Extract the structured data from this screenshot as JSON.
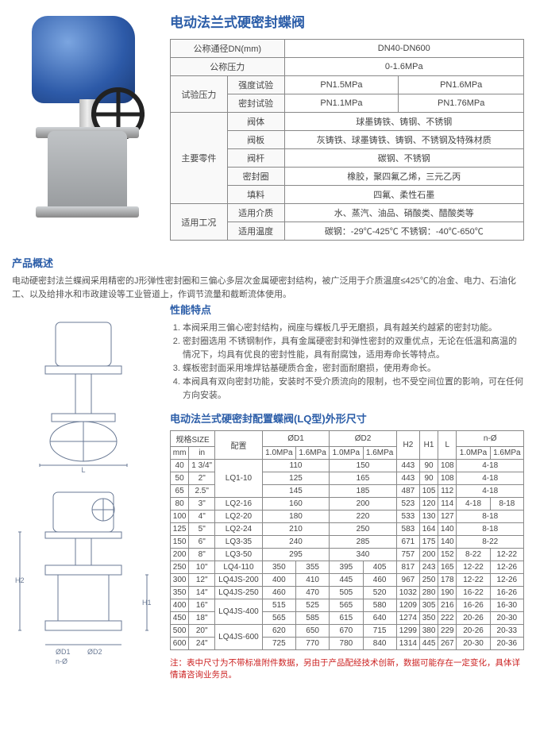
{
  "title": "电动法兰式硬密封蝶阀",
  "spec": {
    "rows": [
      {
        "k": "公称通径DN(mm)",
        "v": "DN40-DN600",
        "span": 4
      },
      {
        "k": "公称压力",
        "v": "0-1.6MPa",
        "span": 4
      },
      {
        "k": "试验压力",
        "sub": [
          {
            "k": "强度试验",
            "v1": "PN1.5MPa",
            "v2": "PN1.6MPa"
          },
          {
            "k": "密封试验",
            "v1": "PN1.1MPa",
            "v2": "PN1.76MPa"
          }
        ]
      },
      {
        "k": "主要零件",
        "sub2": [
          {
            "k": "阀体",
            "v": "球墨铸铁、铸钢、不锈钢"
          },
          {
            "k": "阀板",
            "v": "灰铸铁、球墨铸铁、铸钢、不锈钢及特殊材质"
          },
          {
            "k": "阀杆",
            "v": "碳钢、不锈钢"
          },
          {
            "k": "密封圈",
            "v": "橡胶，聚四氟乙烯，三元乙丙"
          },
          {
            "k": "填料",
            "v": "四氟、柔性石墨"
          }
        ]
      },
      {
        "k": "适用工况",
        "sub2": [
          {
            "k": "适用介质",
            "v": "水、蒸汽、油品、硝酸类、醋酸类等"
          },
          {
            "k": "适用温度",
            "v": "碳钢：-29℃-425℃  不锈钢：-40℃-650℃"
          }
        ]
      }
    ]
  },
  "overview": {
    "h": "产品概述",
    "p": "电动硬密封法兰蝶阀采用精密的J形弹性密封圈和三偏心多层次金属硬密封结构，被广泛用于介质温度≤425℃的冶金、电力、石油化工、以及给排水和市政建设等工业管道上，作调节流量和截断流体使用。"
  },
  "features": {
    "h": "性能特点",
    "items": [
      "本阀采用三偏心密封结构，阀座与蝶板几乎无磨损，具有越关约越紧的密封功能。",
      "密封圈选用 不锈钢制作，具有金属硬密封和弹性密封的双重优点，无论在低温和高温的情况下，均具有优良的密封性能，具有耐腐蚀，适用寿命长等特点。",
      "蝶板密封面采用堆焊钴基硬质合金，密封面耐磨损，使用寿命长。",
      "本阀具有双向密封功能，安装时不受介质流向的限制，也不受空间位置的影响，可在任何方向安装。"
    ]
  },
  "dimTitle": "电动法兰式硬密封配置蝶阀(LQ型)外形尺寸",
  "dimHead": {
    "size": "规格SIZE",
    "mm": "mm",
    "in": "in",
    "cfg": "配置",
    "d1": "ØD1",
    "d2": "ØD2",
    "h2": "H2",
    "h1": "H1",
    "l": "L",
    "nphi": "n-Ø",
    "p10": "1.0MPa",
    "p16": "1.6MPa"
  },
  "dimRows": [
    {
      "mm": "40",
      "in": "1 3/4\"",
      "cfg": "LQ1-10",
      "d1a": "",
      "d1": "110",
      "d2a": "",
      "d2": "150",
      "h2": "443",
      "h1": "90",
      "l": "108",
      "na": "",
      "n": "4-18"
    },
    {
      "mm": "50",
      "in": "2\"",
      "cfg": "",
      "d1a": "",
      "d1": "125",
      "d2a": "",
      "d2": "165",
      "h2": "443",
      "h1": "90",
      "l": "108",
      "na": "",
      "n": "4-18"
    },
    {
      "mm": "65",
      "in": "2.5\"",
      "cfg": "",
      "d1a": "",
      "d1": "145",
      "d2a": "",
      "d2": "185",
      "h2": "487",
      "h1": "105",
      "l": "112",
      "na": "",
      "n": "4-18"
    },
    {
      "mm": "80",
      "in": "3\"",
      "cfg": "LQ2-16",
      "d1a": "",
      "d1": "160",
      "d2a": "",
      "d2": "200",
      "h2": "523",
      "h1": "120",
      "l": "114",
      "na": "4-18",
      "n": "8-18"
    },
    {
      "mm": "100",
      "in": "4\"",
      "cfg": "LQ2-20",
      "d1a": "",
      "d1": "180",
      "d2a": "",
      "d2": "220",
      "h2": "533",
      "h1": "130",
      "l": "127",
      "na": "",
      "n": "8-18"
    },
    {
      "mm": "125",
      "in": "5\"",
      "cfg": "LQ2-24",
      "d1a": "",
      "d1": "210",
      "d2a": "",
      "d2": "250",
      "h2": "583",
      "h1": "164",
      "l": "140",
      "na": "",
      "n": "8-18"
    },
    {
      "mm": "150",
      "in": "6\"",
      "cfg": "LQ3-35",
      "d1a": "",
      "d1": "240",
      "d2a": "",
      "d2": "285",
      "h2": "671",
      "h1": "175",
      "l": "140",
      "na": "",
      "n": "8-22"
    },
    {
      "mm": "200",
      "in": "8\"",
      "cfg": "LQ3-50",
      "d1a": "",
      "d1": "295",
      "d2a": "",
      "d2": "340",
      "h2": "757",
      "h1": "200",
      "l": "152",
      "na": "8-22",
      "n": "12-22"
    },
    {
      "mm": "250",
      "in": "10\"",
      "cfg": "LQ4-110",
      "d1a": "350",
      "d1": "355",
      "d2a": "395",
      "d2": "405",
      "h2": "817",
      "h1": "243",
      "l": "165",
      "na": "12-22",
      "n": "12-26"
    },
    {
      "mm": "300",
      "in": "12\"",
      "cfg": "LQ4JS-200",
      "d1a": "400",
      "d1": "410",
      "d2a": "445",
      "d2": "460",
      "h2": "967",
      "h1": "250",
      "l": "178",
      "na": "12-22",
      "n": "12-26"
    },
    {
      "mm": "350",
      "in": "14\"",
      "cfg": "LQ4JS-250",
      "d1a": "460",
      "d1": "470",
      "d2a": "505",
      "d2": "520",
      "h2": "1032",
      "h1": "280",
      "l": "190",
      "na": "16-22",
      "n": "16-26"
    },
    {
      "mm": "400",
      "in": "16\"",
      "cfg": "LQ4JS-400",
      "d1a": "515",
      "d1": "525",
      "d2a": "565",
      "d2": "580",
      "h2": "1209",
      "h1": "305",
      "l": "216",
      "na": "16-26",
      "n": "16-30"
    },
    {
      "mm": "450",
      "in": "18\"",
      "cfg": "",
      "d1a": "565",
      "d1": "585",
      "d2a": "615",
      "d2": "640",
      "h2": "1274",
      "h1": "350",
      "l": "222",
      "na": "20-26",
      "n": "20-30"
    },
    {
      "mm": "500",
      "in": "20\"",
      "cfg": "LQ4JS-600",
      "d1a": "620",
      "d1": "650",
      "d2a": "670",
      "d2": "715",
      "h2": "1299",
      "h1": "380",
      "l": "229",
      "na": "20-26",
      "n": "20-33"
    },
    {
      "mm": "600",
      "in": "24\"",
      "cfg": "",
      "d1a": "725",
      "d1": "770",
      "d2a": "780",
      "d2": "840",
      "h2": "1314",
      "h1": "445",
      "l": "267",
      "na": "20-30",
      "n": "20-36"
    }
  ],
  "cfgSpan": {
    "0": 3,
    "3": 1,
    "4": 1,
    "5": 1,
    "6": 1,
    "7": 1,
    "8": 1,
    "9": 1,
    "10": 1,
    "11": 2,
    "13": 2
  },
  "note": "注：表中尺寸为不带标准附件数据，另由于产品配经技术创新，数据可能存在一定变化，具体详情请咨询业务员。"
}
